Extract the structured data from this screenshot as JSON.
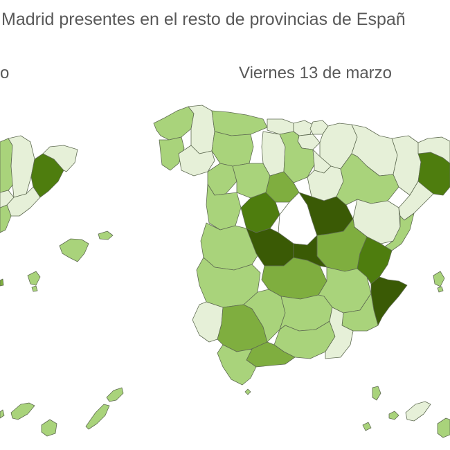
{
  "title": "Madrid presentes en el resto de provincias de Españ",
  "left_map": {
    "label": "o"
  },
  "right_map": {
    "label": "Viernes 13 de marzo"
  },
  "colors": {
    "level_1": "#e6f0d8",
    "level_2": "#a9d37b",
    "level_3": "#7fae3f",
    "level_4": "#4e7d0e",
    "level_5": "#3a5a05",
    "empty": "#ffffff",
    "border": "#5f6b52"
  }
}
